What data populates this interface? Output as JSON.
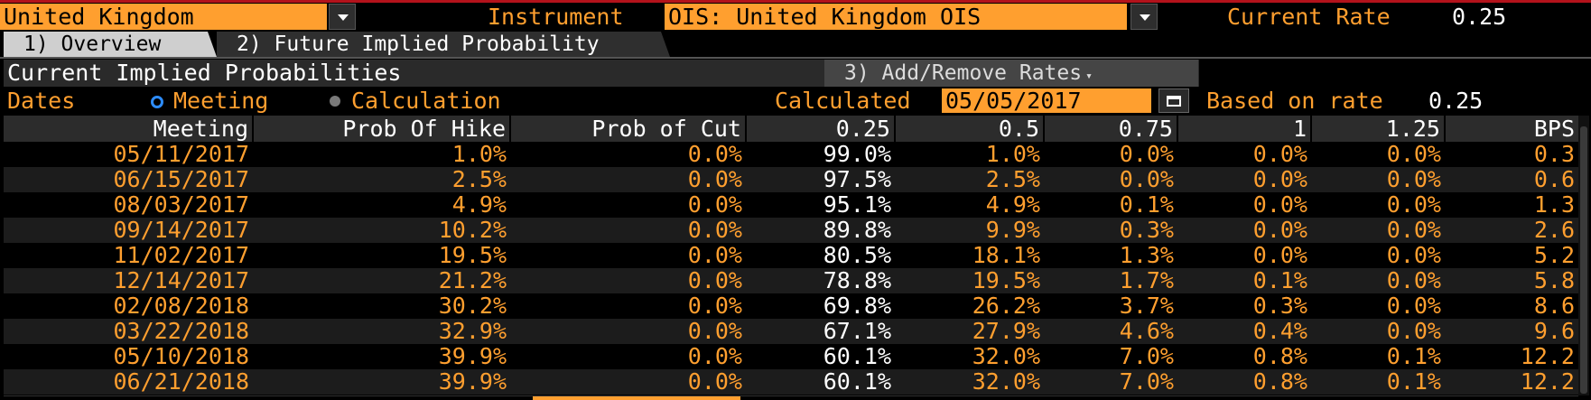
{
  "header": {
    "country": "United Kingdom",
    "instrument_label": "Instrument",
    "instrument": "OIS: United Kingdom OIS",
    "current_rate_label": "Current Rate",
    "current_rate": "0.25"
  },
  "tabs": [
    {
      "label": "1) Overview"
    },
    {
      "label": "2) Future Implied Probability"
    }
  ],
  "section": {
    "title": "Current Implied Probabilities",
    "add_remove_label": "3) Add/Remove Rates"
  },
  "dates_row": {
    "label": "Dates",
    "opt_meeting": "Meeting",
    "opt_calculation": "Calculation",
    "calculated_label": "Calculated",
    "calculated_value": "05/05/2017",
    "based_on_label": "Based on rate",
    "based_on_value": "0.25"
  },
  "table": {
    "headers": [
      "Meeting",
      "Prob Of Hike",
      "Prob of Cut",
      "0.25",
      "0.5",
      "0.75",
      "1",
      "1.25",
      "BPS"
    ],
    "rows": [
      [
        "05/11/2017",
        "1.0%",
        "0.0%",
        "99.0%",
        "1.0%",
        "0.0%",
        "0.0%",
        "0.0%",
        "0.3"
      ],
      [
        "06/15/2017",
        "2.5%",
        "0.0%",
        "97.5%",
        "2.5%",
        "0.0%",
        "0.0%",
        "0.0%",
        "0.6"
      ],
      [
        "08/03/2017",
        "4.9%",
        "0.0%",
        "95.1%",
        "4.9%",
        "0.1%",
        "0.0%",
        "0.0%",
        "1.3"
      ],
      [
        "09/14/2017",
        "10.2%",
        "0.0%",
        "89.8%",
        "9.9%",
        "0.3%",
        "0.0%",
        "0.0%",
        "2.6"
      ],
      [
        "11/02/2017",
        "19.5%",
        "0.0%",
        "80.5%",
        "18.1%",
        "1.3%",
        "0.0%",
        "0.0%",
        "5.2"
      ],
      [
        "12/14/2017",
        "21.2%",
        "0.0%",
        "78.8%",
        "19.5%",
        "1.7%",
        "0.1%",
        "0.0%",
        "5.8"
      ],
      [
        "02/08/2018",
        "30.2%",
        "0.0%",
        "69.8%",
        "26.2%",
        "3.7%",
        "0.3%",
        "0.0%",
        "8.6"
      ],
      [
        "03/22/2018",
        "32.9%",
        "0.0%",
        "67.1%",
        "27.9%",
        "4.6%",
        "0.4%",
        "0.0%",
        "9.6"
      ],
      [
        "05/10/2018",
        "39.9%",
        "0.0%",
        "60.1%",
        "32.0%",
        "7.0%",
        "0.8%",
        "0.1%",
        "12.2"
      ],
      [
        "06/21/2018",
        "39.9%",
        "0.0%",
        "60.1%",
        "32.0%",
        "7.0%",
        "0.8%",
        "0.1%",
        "12.2"
      ]
    ]
  },
  "colors": {
    "accent": "#ff9f2f",
    "background": "#000000",
    "radio_selected": "#2d8cff"
  },
  "icons": {
    "dropdown": "chevron-down-icon",
    "calendar": "calendar-icon"
  }
}
